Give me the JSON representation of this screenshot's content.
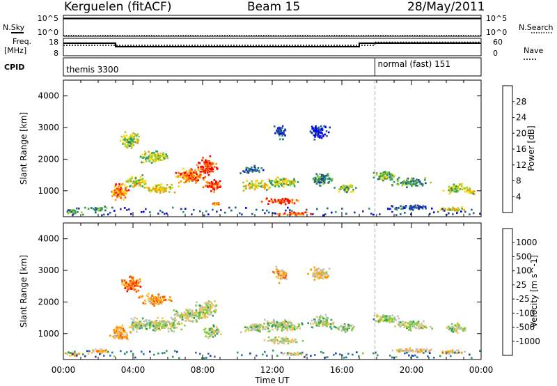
{
  "header": {
    "station": "Kerguelen (fitACF)",
    "beam": "Beam 15",
    "date": "28/May/2011"
  },
  "nsky_panel": {
    "left_label": "N.Sky",
    "right_label": "N.Search",
    "left_ticks": [
      "10^5",
      "10^0"
    ],
    "right_ticks": [
      "10^5",
      "10^0"
    ],
    "nsky_level": 0.85,
    "nsearch_level": 0.0
  },
  "freq_panel": {
    "left_label_1": "Freq.",
    "left_label_2": "[MHz]",
    "right_label": "Nave",
    "left_ticks": [
      "18",
      "8"
    ],
    "right_ticks": [
      "60",
      "0"
    ],
    "freq_steps": [
      {
        "t0": 0.0,
        "t1": 3.0,
        "level": 0.72
      },
      {
        "t0": 3.0,
        "t1": 17.0,
        "level": 0.52
      },
      {
        "t0": 17.0,
        "t1": 24.0,
        "level": 0.72
      }
    ],
    "nave_steps": [
      {
        "t0": 0.0,
        "t1": 17.9,
        "level": 0.6
      },
      {
        "t0": 17.9,
        "t1": 24.0,
        "level": 0.78
      }
    ]
  },
  "cpid_panel": {
    "label": "CPID",
    "programs": [
      {
        "name": "themis 3300",
        "start": 0.0
      },
      {
        "name": "normal (fast) 151",
        "start": 17.9
      }
    ]
  },
  "time_axis": {
    "label": "Time UT",
    "ticks": [
      "00:00",
      "04:00",
      "08:00",
      "12:00",
      "16:00",
      "20:00",
      "00:00"
    ],
    "tick_hours": [
      0,
      4,
      8,
      12,
      16,
      20,
      24
    ],
    "minor_step": 1
  },
  "chart_data": [
    {
      "type": "heatmap",
      "quantity": "power",
      "ylabel": "Slant Range [km]",
      "ylim": [
        180,
        4500
      ],
      "yticks": [
        1000,
        2000,
        3000,
        4000
      ],
      "xlim": [
        0,
        24
      ],
      "colorbar": {
        "label": "Power [dB]",
        "ticks": [
          "28",
          "24",
          "20",
          "16",
          "12",
          "8",
          "4"
        ],
        "colors": [
          "#0000ff",
          "#2233aa",
          "#226688",
          "#2f9e56",
          "#9acd32",
          "#ffd700",
          "#ff9900",
          "#ff5500",
          "#ff0000"
        ]
      },
      "blobs": [
        {
          "t": 0.5,
          "r": 370,
          "dt": 0.6,
          "dr": 120,
          "v": 0.45
        },
        {
          "t": 2.0,
          "r": 460,
          "dt": 0.8,
          "dr": 110,
          "v": 0.4
        },
        {
          "t": 3.2,
          "r": 1000,
          "dt": 0.7,
          "dr": 350,
          "v": 0.75
        },
        {
          "t": 4.2,
          "r": 1300,
          "dt": 0.8,
          "dr": 250,
          "v": 0.55
        },
        {
          "t": 3.8,
          "r": 2600,
          "dt": 0.8,
          "dr": 350,
          "v": 0.5
        },
        {
          "t": 5.2,
          "r": 2100,
          "dt": 1.1,
          "dr": 250,
          "v": 0.5
        },
        {
          "t": 5.5,
          "r": 1100,
          "dt": 1.2,
          "dr": 180,
          "v": 0.6
        },
        {
          "t": 7.2,
          "r": 1500,
          "dt": 1.1,
          "dr": 300,
          "v": 0.8
        },
        {
          "t": 8.2,
          "r": 1800,
          "dt": 0.8,
          "dr": 350,
          "v": 0.92
        },
        {
          "t": 8.5,
          "r": 1200,
          "dt": 0.6,
          "dr": 250,
          "v": 0.88
        },
        {
          "t": 8.7,
          "r": 600,
          "dt": 0.4,
          "dr": 80,
          "v": 0.7
        },
        {
          "t": 11.0,
          "r": 1200,
          "dt": 1.0,
          "dr": 200,
          "v": 0.6
        },
        {
          "t": 12.5,
          "r": 1300,
          "dt": 1.3,
          "dr": 200,
          "v": 0.55
        },
        {
          "t": 12.5,
          "r": 700,
          "dt": 1.3,
          "dr": 130,
          "v": 0.85
        },
        {
          "t": 13.2,
          "r": 300,
          "dt": 1.2,
          "dr": 80,
          "v": 0.9
        },
        {
          "t": 10.8,
          "r": 1700,
          "dt": 0.8,
          "dr": 150,
          "v": 0.25
        },
        {
          "t": 14.8,
          "r": 1400,
          "dt": 1.0,
          "dr": 250,
          "v": 0.35
        },
        {
          "t": 16.2,
          "r": 1100,
          "dt": 0.8,
          "dr": 180,
          "v": 0.45
        },
        {
          "t": 18.5,
          "r": 1500,
          "dt": 1.0,
          "dr": 200,
          "v": 0.45
        },
        {
          "t": 20.0,
          "r": 1300,
          "dt": 1.3,
          "dr": 200,
          "v": 0.35
        },
        {
          "t": 22.5,
          "r": 1100,
          "dt": 0.8,
          "dr": 200,
          "v": 0.5
        },
        {
          "t": 23.3,
          "r": 1000,
          "dt": 0.4,
          "dr": 150,
          "v": 0.6
        },
        {
          "t": 22.3,
          "r": 450,
          "dt": 1.0,
          "dr": 100,
          "v": 0.6
        },
        {
          "t": 12.4,
          "r": 2900,
          "dt": 0.5,
          "dr": 300,
          "v": 0.2
        },
        {
          "t": 14.6,
          "r": 2900,
          "dt": 0.8,
          "dr": 300,
          "v": 0.15
        },
        {
          "t": 20.0,
          "r": 500,
          "dt": 1.8,
          "dr": 100,
          "v": 0.18
        }
      ]
    },
    {
      "type": "heatmap",
      "quantity": "velocity",
      "ylabel": "Slant Range [km]",
      "ylim": [
        180,
        4500
      ],
      "yticks": [
        1000,
        2000,
        3000,
        4000
      ],
      "xlim": [
        0,
        24
      ],
      "colorbar": {
        "label": "Velocity [m s^-1]",
        "ticks": [
          "1000",
          "500",
          "100",
          "25",
          "-25",
          "-100",
          "-500",
          "-1000"
        ],
        "colors": [
          "#1a3ea8",
          "#2a6fb8",
          "#2f9e56",
          "#7fcf3a",
          "#c0c0c0",
          "#ffc040",
          "#ff9900",
          "#ff5500",
          "#ff0000"
        ]
      },
      "blobs": [
        {
          "t": 0.5,
          "r": 370,
          "dt": 0.6,
          "dr": 120,
          "v": 0.62
        },
        {
          "t": 2.0,
          "r": 460,
          "dt": 0.8,
          "dr": 110,
          "v": 0.65
        },
        {
          "t": 3.2,
          "r": 1000,
          "dt": 0.7,
          "dr": 350,
          "v": 0.66
        },
        {
          "t": 4.2,
          "r": 1300,
          "dt": 0.8,
          "dr": 250,
          "v": 0.45
        },
        {
          "t": 3.8,
          "r": 2600,
          "dt": 0.8,
          "dr": 350,
          "v": 0.8
        },
        {
          "t": 5.2,
          "r": 2100,
          "dt": 1.1,
          "dr": 250,
          "v": 0.7
        },
        {
          "t": 5.5,
          "r": 1300,
          "dt": 1.6,
          "dr": 280,
          "v": 0.45
        },
        {
          "t": 7.2,
          "r": 1600,
          "dt": 1.3,
          "dr": 300,
          "v": 0.45
        },
        {
          "t": 8.2,
          "r": 1800,
          "dt": 0.8,
          "dr": 350,
          "v": 0.5
        },
        {
          "t": 8.5,
          "r": 1100,
          "dt": 0.7,
          "dr": 250,
          "v": 0.45
        },
        {
          "t": 11.0,
          "r": 1200,
          "dt": 1.0,
          "dr": 200,
          "v": 0.45
        },
        {
          "t": 12.5,
          "r": 1300,
          "dt": 1.5,
          "dr": 250,
          "v": 0.45
        },
        {
          "t": 12.5,
          "r": 800,
          "dt": 1.3,
          "dr": 150,
          "v": 0.5
        },
        {
          "t": 13.2,
          "r": 380,
          "dt": 1.0,
          "dr": 80,
          "v": 0.62
        },
        {
          "t": 14.8,
          "r": 1400,
          "dt": 1.0,
          "dr": 250,
          "v": 0.45
        },
        {
          "t": 16.2,
          "r": 1200,
          "dt": 0.8,
          "dr": 180,
          "v": 0.45
        },
        {
          "t": 18.5,
          "r": 1500,
          "dt": 1.0,
          "dr": 200,
          "v": 0.45
        },
        {
          "t": 20.0,
          "r": 1300,
          "dt": 1.3,
          "dr": 200,
          "v": 0.45
        },
        {
          "t": 22.5,
          "r": 1200,
          "dt": 0.8,
          "dr": 200,
          "v": 0.45
        },
        {
          "t": 22.3,
          "r": 450,
          "dt": 1.0,
          "dr": 100,
          "v": 0.62
        },
        {
          "t": 12.4,
          "r": 2900,
          "dt": 0.5,
          "dr": 300,
          "v": 0.65
        },
        {
          "t": 14.6,
          "r": 2900,
          "dt": 0.8,
          "dr": 300,
          "v": 0.6
        },
        {
          "t": 20.0,
          "r": 500,
          "dt": 1.8,
          "dr": 100,
          "v": 0.6
        }
      ]
    }
  ]
}
